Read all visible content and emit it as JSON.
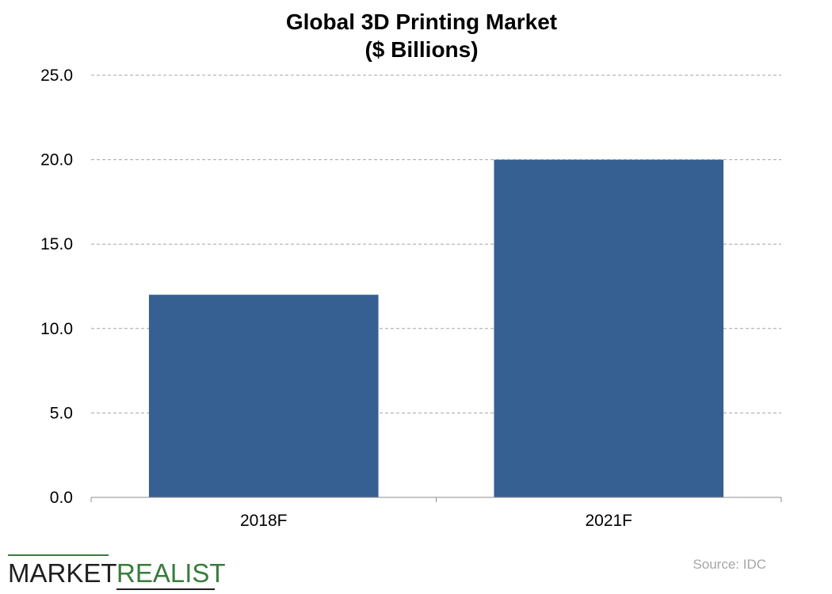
{
  "chart_data": {
    "type": "bar",
    "title": "Global 3D Printing Market",
    "subtitle": "($ Billions)",
    "categories": [
      "2018F",
      "2021F"
    ],
    "values": [
      12.0,
      20.0
    ],
    "xlabel": "",
    "ylabel": "",
    "ylim": [
      0,
      25
    ],
    "yticks": [
      "0.0",
      "5.0",
      "10.0",
      "15.0",
      "20.0",
      "25.0"
    ],
    "grid": true,
    "legend": "none",
    "bar_color": "#376092"
  },
  "source": "Source: IDC",
  "logo": {
    "word1": "MARKET",
    "word2": "REALIST",
    "color1": "#1f1f1f",
    "color2": "#3a7b3e"
  }
}
